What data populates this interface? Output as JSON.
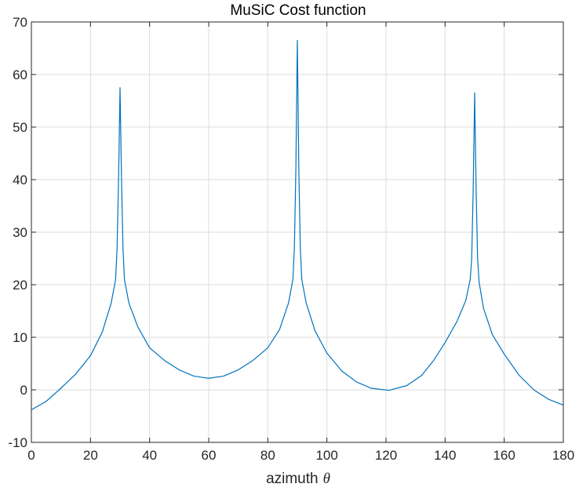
{
  "chart_data": {
    "type": "line",
    "title": "MuSiC Cost function",
    "xlabel": "azimuth",
    "xlabel_symbol": "θ",
    "ylabel": "",
    "xlim": [
      0,
      180
    ],
    "ylim": [
      -10,
      70
    ],
    "xticks": [
      0,
      20,
      40,
      60,
      80,
      100,
      120,
      140,
      160,
      180
    ],
    "yticks": [
      -10,
      0,
      10,
      20,
      30,
      40,
      50,
      60,
      70
    ],
    "grid": true,
    "line_color": "#0072bd",
    "series": [
      {
        "x": [
          0,
          5,
          10,
          15,
          20,
          24,
          27,
          28.5,
          29,
          29.5,
          30,
          30.5,
          31,
          31.5,
          33,
          36,
          40,
          45,
          50,
          55,
          60,
          65,
          70,
          75,
          80,
          84,
          87,
          88.5,
          89,
          89.5,
          90,
          90.5,
          91,
          91.5,
          93,
          96,
          100,
          105,
          110,
          115,
          121,
          127,
          132,
          136,
          140,
          144,
          147,
          148.5,
          149,
          149.5,
          150,
          150.5,
          151,
          151.5,
          153,
          156,
          160,
          165,
          170,
          175,
          180
        ],
        "y": [
          -3.8,
          -2.2,
          0.3,
          3.0,
          6.5,
          11.0,
          16.5,
          21.0,
          27.0,
          40.0,
          57.5,
          40.0,
          27.0,
          21.0,
          16.5,
          12.0,
          8.0,
          5.6,
          3.8,
          2.6,
          2.2,
          2.6,
          3.8,
          5.6,
          8.0,
          11.5,
          16.5,
          21.0,
          27.0,
          42.0,
          66.5,
          42.0,
          27.0,
          21.0,
          16.5,
          11.2,
          7.0,
          3.6,
          1.5,
          0.3,
          -0.1,
          0.8,
          2.7,
          5.5,
          9.0,
          13.0,
          17.0,
          21.0,
          25.0,
          38.0,
          56.5,
          38.0,
          25.0,
          20.5,
          15.5,
          10.5,
          6.8,
          2.8,
          0.0,
          -1.8,
          -2.9
        ]
      }
    ]
  }
}
